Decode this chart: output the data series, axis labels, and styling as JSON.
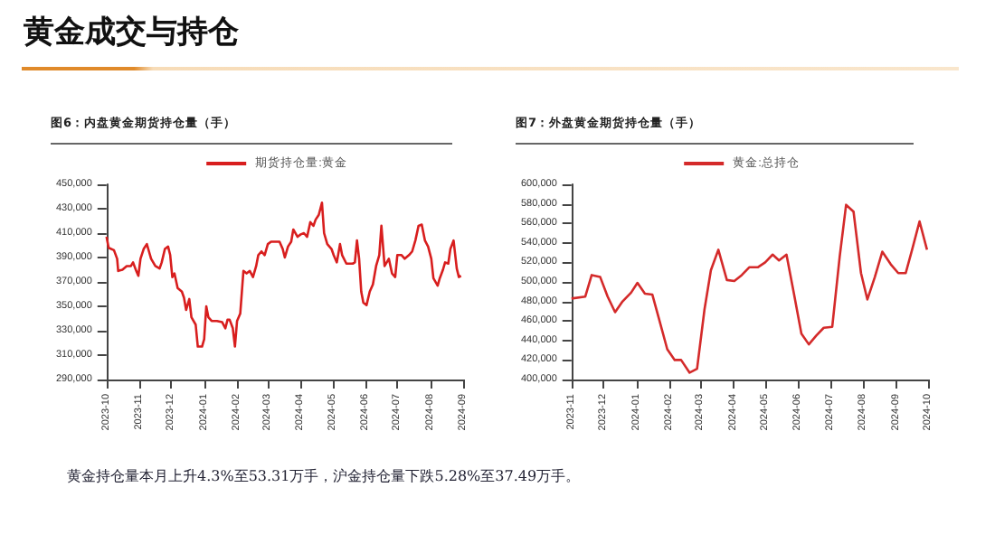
{
  "chart_data": [
    {
      "type": "other",
      "title": "黄金成交与持仓"
    },
    {
      "type": "line",
      "title": "图6：内盘黄金期货持仓量（手）",
      "legend": "top",
      "x": [
        "2023-10-01",
        "2023-10-03",
        "2023-10-08",
        "2023-10-11",
        "2023-10-12",
        "2023-10-16",
        "2023-10-20",
        "2023-10-24",
        "2023-10-26",
        "2023-10-29",
        "2023-10-31",
        "2023-11-02",
        "2023-11-05",
        "2023-11-08",
        "2023-11-10",
        "2023-11-12",
        "2023-11-16",
        "2023-11-20",
        "2023-11-22",
        "2023-11-25",
        "2023-11-28",
        "2023-11-30",
        "2023-12-02",
        "2023-12-04",
        "2023-12-07",
        "2023-12-11",
        "2023-12-13",
        "2023-12-15",
        "2023-12-18",
        "2023-12-20",
        "2023-12-24",
        "2023-12-26",
        "2023-12-30",
        "2024-01-01",
        "2024-01-03",
        "2024-01-05",
        "2024-01-08",
        "2024-01-13",
        "2024-01-18",
        "2024-01-21",
        "2024-01-23",
        "2024-01-25",
        "2024-01-28",
        "2024-01-30",
        "2024-02-01",
        "2024-02-04",
        "2024-02-07",
        "2024-02-10",
        "2024-02-13",
        "2024-02-16",
        "2024-02-19",
        "2024-02-21",
        "2024-02-24",
        "2024-02-27",
        "2024-03-01",
        "2024-03-04",
        "2024-03-08",
        "2024-03-12",
        "2024-03-15",
        "2024-03-17",
        "2024-03-20",
        "2024-03-23",
        "2024-03-25",
        "2024-03-29",
        "2024-04-01",
        "2024-04-04",
        "2024-04-07",
        "2024-04-10",
        "2024-04-13",
        "2024-04-15",
        "2024-04-18",
        "2024-04-21",
        "2024-04-23",
        "2024-04-26",
        "2024-04-30",
        "2024-05-02",
        "2024-05-05",
        "2024-05-08",
        "2024-05-10",
        "2024-05-14",
        "2024-05-20",
        "2024-05-22",
        "2024-05-24",
        "2024-05-26",
        "2024-05-28",
        "2024-05-30",
        "2024-06-02",
        "2024-06-05",
        "2024-06-08",
        "2024-06-11",
        "2024-06-14",
        "2024-06-16",
        "2024-06-19",
        "2024-06-23",
        "2024-06-26",
        "2024-06-29",
        "2024-07-01",
        "2024-07-05",
        "2024-07-08",
        "2024-07-12",
        "2024-07-15",
        "2024-07-18",
        "2024-07-21",
        "2024-07-24",
        "2024-07-27",
        "2024-07-30",
        "2024-08-02",
        "2024-08-04",
        "2024-08-08",
        "2024-08-10",
        "2024-08-13",
        "2024-08-15",
        "2024-08-18",
        "2024-08-20",
        "2024-08-23",
        "2024-08-24",
        "2024-08-26",
        "2024-08-28",
        "2024-08-30"
      ],
      "series": [
        {
          "name": "期货持仓量:黄金",
          "color": "#d81e1e",
          "values": [
            407000,
            398000,
            396000,
            389000,
            379000,
            380000,
            383000,
            383000,
            386000,
            379000,
            375000,
            389000,
            397000,
            401000,
            395000,
            389000,
            383000,
            381000,
            386000,
            397000,
            399000,
            392000,
            374000,
            377000,
            365000,
            362000,
            357000,
            347000,
            356000,
            341000,
            335000,
            317000,
            317000,
            323000,
            350000,
            341000,
            338000,
            338000,
            337000,
            332000,
            339000,
            339000,
            332000,
            317000,
            338000,
            344000,
            379000,
            377000,
            379000,
            374000,
            383000,
            392000,
            395000,
            392000,
            401000,
            403000,
            403000,
            403000,
            397000,
            390000,
            399000,
            403000,
            413000,
            407000,
            409000,
            410000,
            407000,
            419000,
            416000,
            421000,
            425000,
            435000,
            410000,
            401000,
            397000,
            392000,
            386000,
            401000,
            392000,
            385000,
            385000,
            386000,
            404000,
            389000,
            362000,
            353000,
            351000,
            362000,
            368000,
            383000,
            392000,
            416000,
            383000,
            389000,
            377000,
            374000,
            392000,
            392000,
            389000,
            392000,
            395000,
            404000,
            416000,
            417000,
            404000,
            399000,
            389000,
            373000,
            367000,
            373000,
            380000,
            386000,
            385000,
            397000,
            404000,
            404000,
            381000,
            374000,
            375000
          ]
        }
      ],
      "xlim": [
        "2023-10",
        "2024-09"
      ],
      "xticks": [
        "2023-10",
        "2023-11",
        "2023-12",
        "2024-01",
        "2024-02",
        "2024-03",
        "2024-04",
        "2024-05",
        "2024-06",
        "2024-07",
        "2024-08",
        "2024-09"
      ],
      "ylim": [
        290000,
        450000
      ],
      "yticks": [
        {
          "value": 290000,
          "label": "290,000"
        },
        {
          "value": 310000,
          "label": "310,000"
        },
        {
          "value": 330000,
          "label": "330,000"
        },
        {
          "value": 350000,
          "label": "350,000"
        },
        {
          "value": 370000,
          "label": "370,000"
        },
        {
          "value": 390000,
          "label": "390,000"
        },
        {
          "value": 410000,
          "label": "410,000"
        },
        {
          "value": 430000,
          "label": "430,000"
        },
        {
          "value": 450000,
          "label": "450,000"
        }
      ]
    },
    {
      "type": "line",
      "title": "图7：外盘黄金期货持仓量（手）",
      "legend": "top",
      "x": [
        "2023-11-01",
        "2023-11-14",
        "2023-11-20",
        "2023-11-28",
        "2023-12-05",
        "2023-12-12",
        "2023-12-19",
        "2023-12-27",
        "2024-01-02",
        "2024-01-09",
        "2024-01-16",
        "2024-01-22",
        "2024-01-30",
        "2024-02-06",
        "2024-02-12",
        "2024-02-20",
        "2024-02-27",
        "2024-03-05",
        "2024-03-11",
        "2024-03-18",
        "2024-03-26",
        "2024-04-02",
        "2024-04-09",
        "2024-04-16",
        "2024-04-24",
        "2024-05-01",
        "2024-05-08",
        "2024-05-14",
        "2024-05-21",
        "2024-05-28",
        "2024-06-04",
        "2024-06-11",
        "2024-06-18",
        "2024-06-25",
        "2024-07-03",
        "2024-07-10",
        "2024-07-16",
        "2024-07-23",
        "2024-07-30",
        "2024-08-05",
        "2024-08-12",
        "2024-08-19",
        "2024-08-27",
        "2024-09-03",
        "2024-09-10",
        "2024-09-16",
        "2024-09-23",
        "2024-09-30"
      ],
      "series": [
        {
          "name": "黄金:总持仓",
          "color": "#d42a2a",
          "values": [
            483000,
            485000,
            507000,
            505000,
            485000,
            469000,
            480000,
            489000,
            499000,
            488000,
            487000,
            463000,
            431000,
            420000,
            420000,
            407000,
            411000,
            472000,
            512000,
            533000,
            502000,
            501000,
            507000,
            515000,
            515000,
            520000,
            528000,
            522000,
            528000,
            488000,
            447000,
            436000,
            445000,
            453000,
            454000,
            526000,
            579000,
            572000,
            509000,
            482000,
            505000,
            531000,
            518000,
            509000,
            509000,
            533000,
            562000,
            533000
          ]
        }
      ],
      "xlim": [
        "2023-11",
        "2024-10"
      ],
      "xticks": [
        "2023-11",
        "2023-12",
        "2024-01",
        "2024-02",
        "2024-03",
        "2024-04",
        "2024-05",
        "2024-06",
        "2024-07",
        "2024-08",
        "2024-09",
        "2024-10"
      ],
      "ylim": [
        400000,
        600000
      ],
      "yticks": [
        {
          "value": 400000,
          "label": "400,000"
        },
        {
          "value": 420000,
          "label": "420,000"
        },
        {
          "value": 440000,
          "label": "440,000"
        },
        {
          "value": 460000,
          "label": "460,000"
        },
        {
          "value": 480000,
          "label": "480,000"
        },
        {
          "value": 500000,
          "label": "500,000"
        },
        {
          "value": 520000,
          "label": "520,000"
        },
        {
          "value": 540000,
          "label": "540,000"
        },
        {
          "value": 560000,
          "label": "560,000"
        },
        {
          "value": 580000,
          "label": "580,000"
        },
        {
          "value": 600000,
          "label": "600,000"
        }
      ]
    },
    {
      "type": "other",
      "annotations": [
        "黄金持仓量本月上升4.3%至53.31万手，沪金持仓量下跌5.28%至37.49万手。"
      ]
    }
  ]
}
